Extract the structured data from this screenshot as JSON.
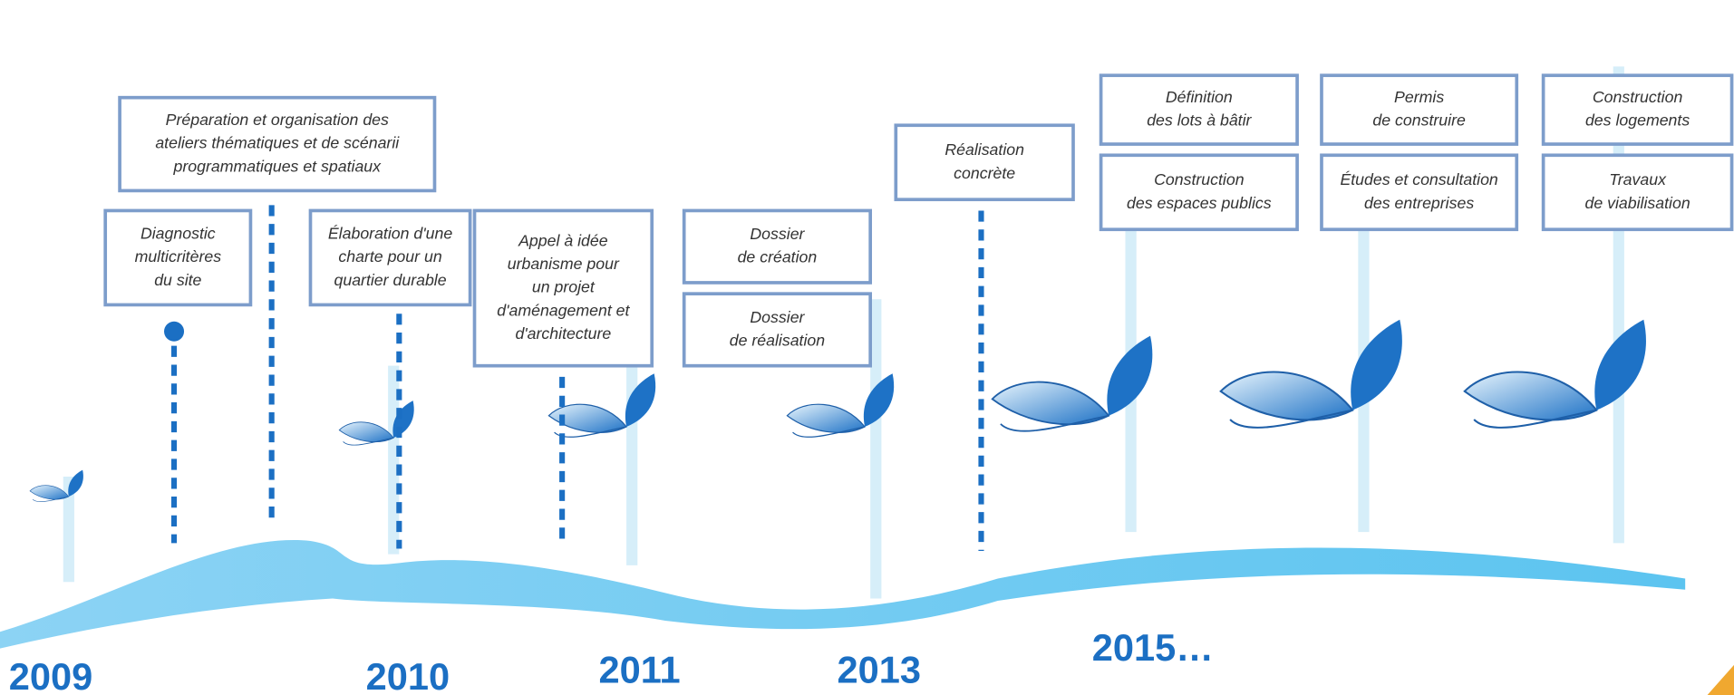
{
  "boxes": [
    {
      "lines": [
        "Préparation et organisation des",
        "ateliers thématiques et de scénarii",
        "programmatiques et spatiaux"
      ]
    },
    {
      "lines": [
        "Diagnostic",
        "multicritères",
        "du site"
      ]
    },
    {
      "lines": [
        "Élaboration d'une",
        "charte pour un",
        "quartier durable"
      ]
    },
    {
      "lines": [
        "Appel à idée",
        "urbanisme pour",
        "un projet",
        "d'aménagement et",
        "d'architecture"
      ]
    },
    {
      "lines": [
        "Dossier",
        "de création"
      ]
    },
    {
      "lines": [
        "Dossier",
        "de réalisation"
      ]
    },
    {
      "lines": [
        "Réalisation",
        "concrète"
      ]
    },
    {
      "lines": [
        "Définition",
        "des lots à bâtir"
      ]
    },
    {
      "lines": [
        "Construction",
        "des espaces publics"
      ]
    },
    {
      "lines": [
        "Permis",
        "de construire"
      ]
    },
    {
      "lines": [
        "Études et consultation",
        "des entreprises"
      ]
    },
    {
      "lines": [
        "Construction",
        "des logements"
      ]
    },
    {
      "lines": [
        "Travaux",
        "de viabilisation"
      ]
    }
  ],
  "years": [
    "2009",
    "2010",
    "2011",
    "2013",
    "2015…"
  ]
}
